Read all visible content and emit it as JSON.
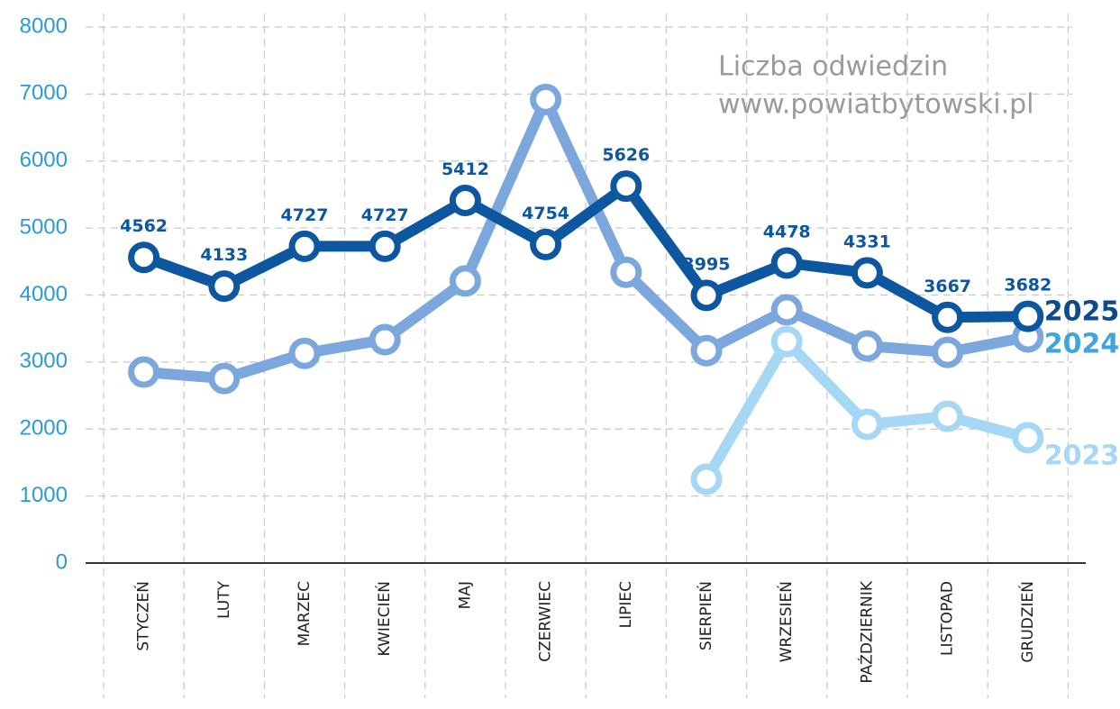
{
  "chart_data": {
    "type": "line",
    "annotations": [
      "Liczba odwiedzin",
      "www.powiatbytowski.pl"
    ],
    "categories": [
      "STYCZEŃ",
      "LUTY",
      "MARZEC",
      "KWIECIEŃ",
      "MAJ",
      "CZERWIEC",
      "LIPIEC",
      "SIERPIEŃ",
      "WRZESIEŃ",
      "PAŹDZIERNIK",
      "LISTOPAD",
      "GRUDZIEŃ"
    ],
    "series": [
      {
        "name": "2023",
        "color": "#a6d8f5",
        "label_color": "#a6d8f5",
        "values": [
          null,
          null,
          null,
          null,
          null,
          null,
          null,
          1250,
          3305,
          2070,
          2190,
          1870
        ]
      },
      {
        "name": "2024",
        "color": "#7ba7dc",
        "label_color": "#3ea6dc",
        "values": [
          2850,
          2755,
          3130,
          3335,
          4210,
          6920,
          4340,
          3170,
          3780,
          3240,
          3145,
          3375
        ]
      },
      {
        "name": "2025",
        "color": "#0d56a0",
        "label_color": "#0d4a8c",
        "values": [
          4562,
          4133,
          4727,
          4727,
          5412,
          4754,
          5626,
          3995,
          4478,
          4331,
          3667,
          3682
        ],
        "show_values": true
      }
    ],
    "ylim": [
      0,
      8000
    ],
    "yticks": [
      0,
      1000,
      2000,
      3000,
      4000,
      5000,
      6000,
      7000,
      8000
    ],
    "grid": true
  }
}
